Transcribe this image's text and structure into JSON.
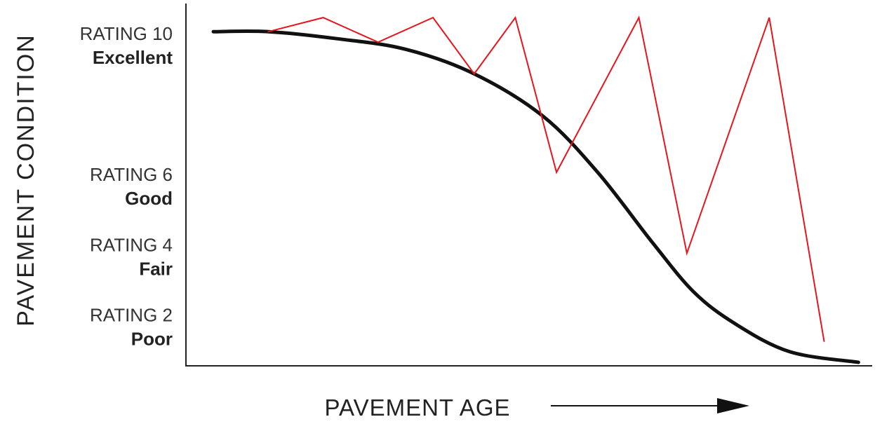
{
  "chart_data": {
    "type": "line",
    "ylabel": "PAVEMENT CONDITION",
    "xlabel": "PAVEMENT AGE",
    "y_ticks": [
      {
        "value": 10,
        "rating_label": "RATING 10",
        "condition_label": "Excellent"
      },
      {
        "value": 6,
        "rating_label": "RATING 6",
        "condition_label": "Good"
      },
      {
        "value": 4,
        "rating_label": "RATING 4",
        "condition_label": "Fair"
      },
      {
        "value": 2,
        "rating_label": "RATING 2",
        "condition_label": "Poor"
      }
    ],
    "ylim": [
      0.5,
      10.8
    ],
    "xlim": [
      0,
      100
    ],
    "series": [
      {
        "color": "#111111",
        "style": "smooth",
        "points": [
          [
            4,
            10
          ],
          [
            12,
            10
          ],
          [
            22,
            9.8
          ],
          [
            32,
            9.5
          ],
          [
            42,
            8.8
          ],
          [
            52,
            7.6
          ],
          [
            60,
            6.0
          ],
          [
            68,
            4.0
          ],
          [
            74,
            2.6
          ],
          [
            80,
            1.7
          ],
          [
            88,
            0.9
          ],
          [
            98,
            0.6
          ]
        ]
      },
      {
        "color": "#e8141c",
        "style": "straight",
        "points": [
          [
            12,
            10
          ],
          [
            20,
            10.4
          ],
          [
            28,
            9.7
          ],
          [
            36,
            10.4
          ],
          [
            42,
            8.8
          ],
          [
            48,
            10.4
          ],
          [
            54,
            6.0
          ],
          [
            66,
            10.4
          ],
          [
            73,
            3.7
          ],
          [
            85,
            10.4
          ],
          [
            93,
            1.2
          ]
        ]
      }
    ],
    "arrow_color": "#111111",
    "grid": false
  }
}
